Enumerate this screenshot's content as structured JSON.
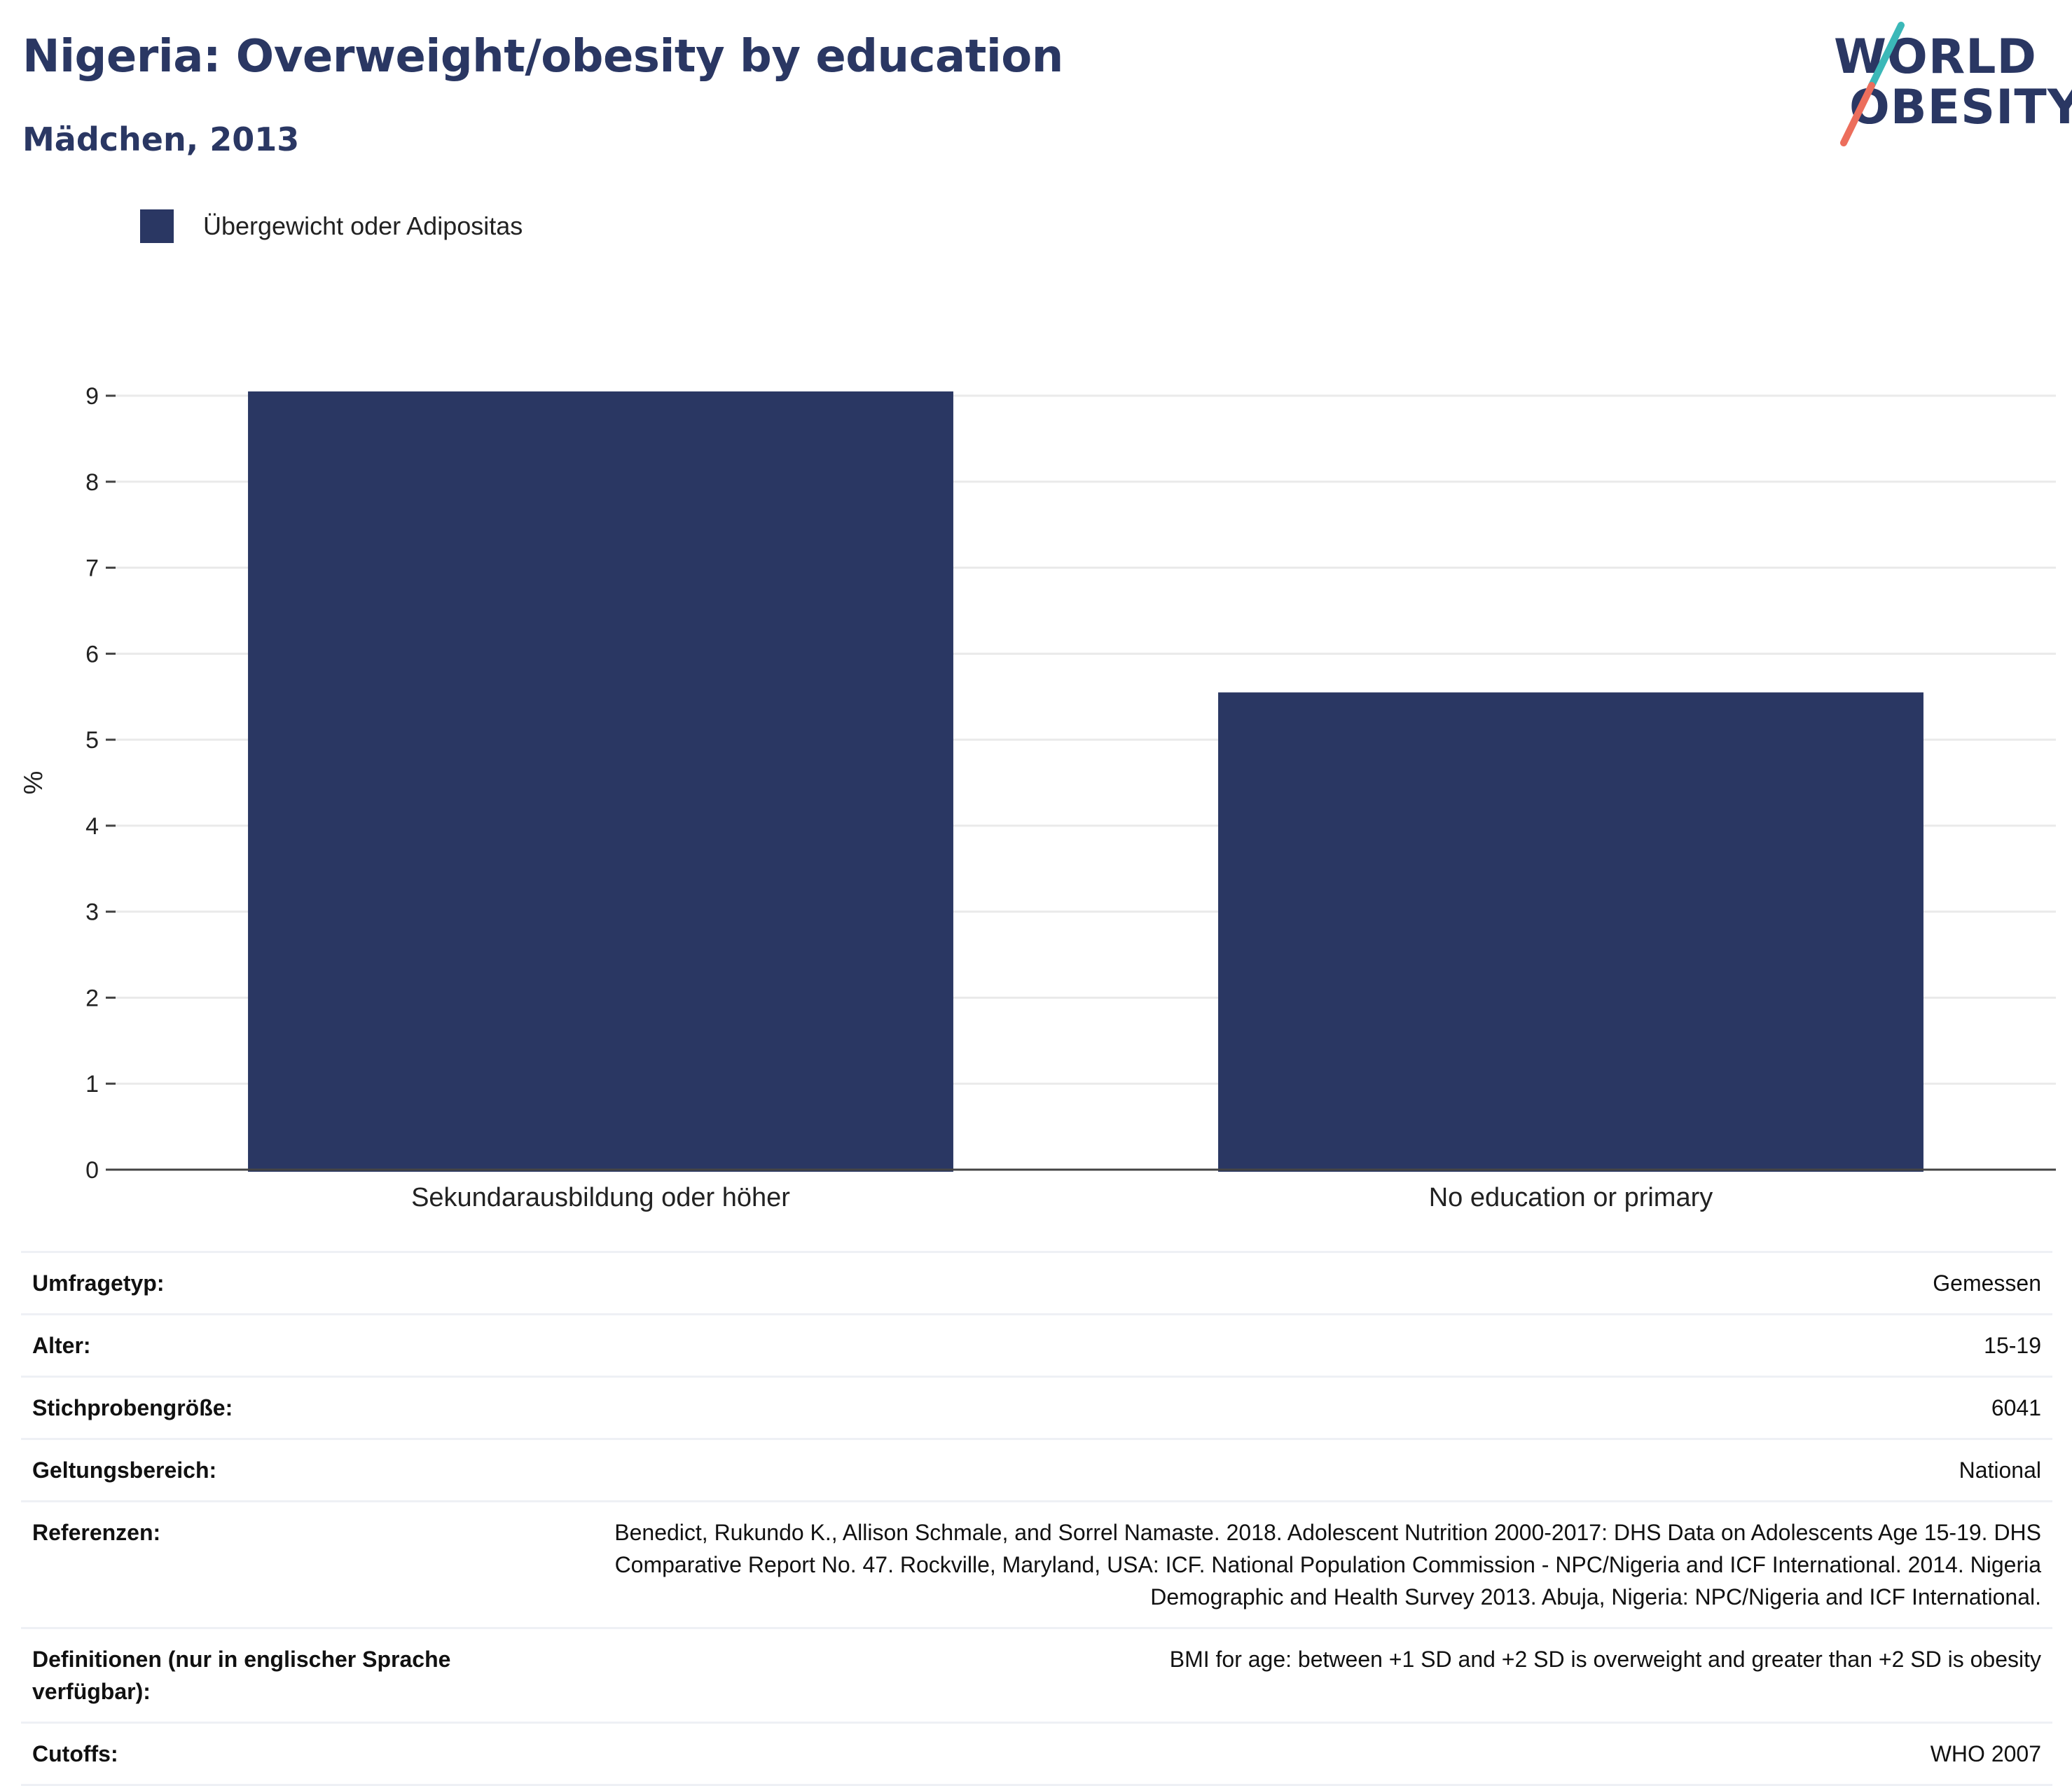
{
  "title": "Nigeria: Overweight/obesity by education",
  "subtitle": "Mädchen, 2013",
  "logo": {
    "line1": "WORLD",
    "line2": "OBESITY",
    "accent_teal": "#3bb8b8",
    "accent_coral": "#ec6e5c"
  },
  "colors": {
    "bar": "#2a3763",
    "grid": "#eaeaea",
    "text": "#2a3763"
  },
  "legend": {
    "label": "Übergewicht oder Adipositas"
  },
  "chart_data": {
    "type": "bar",
    "categories": [
      "Sekundarausbildung oder höher",
      "No education or primary"
    ],
    "series": [
      {
        "name": "Übergewicht oder Adipositas",
        "values": [
          9.05,
          5.55
        ]
      }
    ],
    "ylabel": "%",
    "xlabel": "",
    "ylim": [
      0,
      9
    ],
    "yticks": [
      0,
      1,
      2,
      3,
      4,
      5,
      6,
      7,
      8,
      9
    ],
    "grid": true
  },
  "info": [
    {
      "key": "Umfragetyp:",
      "value": "Gemessen"
    },
    {
      "key": "Alter:",
      "value": "15-19"
    },
    {
      "key": "Stichprobengröße:",
      "value": "6041"
    },
    {
      "key": "Geltungsbereich:",
      "value": "National"
    },
    {
      "key": "Referenzen:",
      "value": "Benedict, Rukundo K., Allison Schmale, and Sorrel Namaste. 2018. Adolescent Nutrition 2000-2017: DHS Data on Adolescents Age 15-19. DHS Comparative Report No. 47. Rockville, Maryland, USA: ICF. National Population Commission - NPC/Nigeria and ICF International. 2014. Nigeria Demographic and Health Survey 2013. Abuja, Nigeria: NPC/Nigeria and ICF International."
    },
    {
      "key": "Definitionen (nur in englischer Sprache verfügbar):",
      "value": "BMI for age: between +1 SD and +2 SD is overweight and greater than +2 SD is obesity"
    },
    {
      "key": "Cutoffs:",
      "value": "WHO 2007"
    }
  ]
}
